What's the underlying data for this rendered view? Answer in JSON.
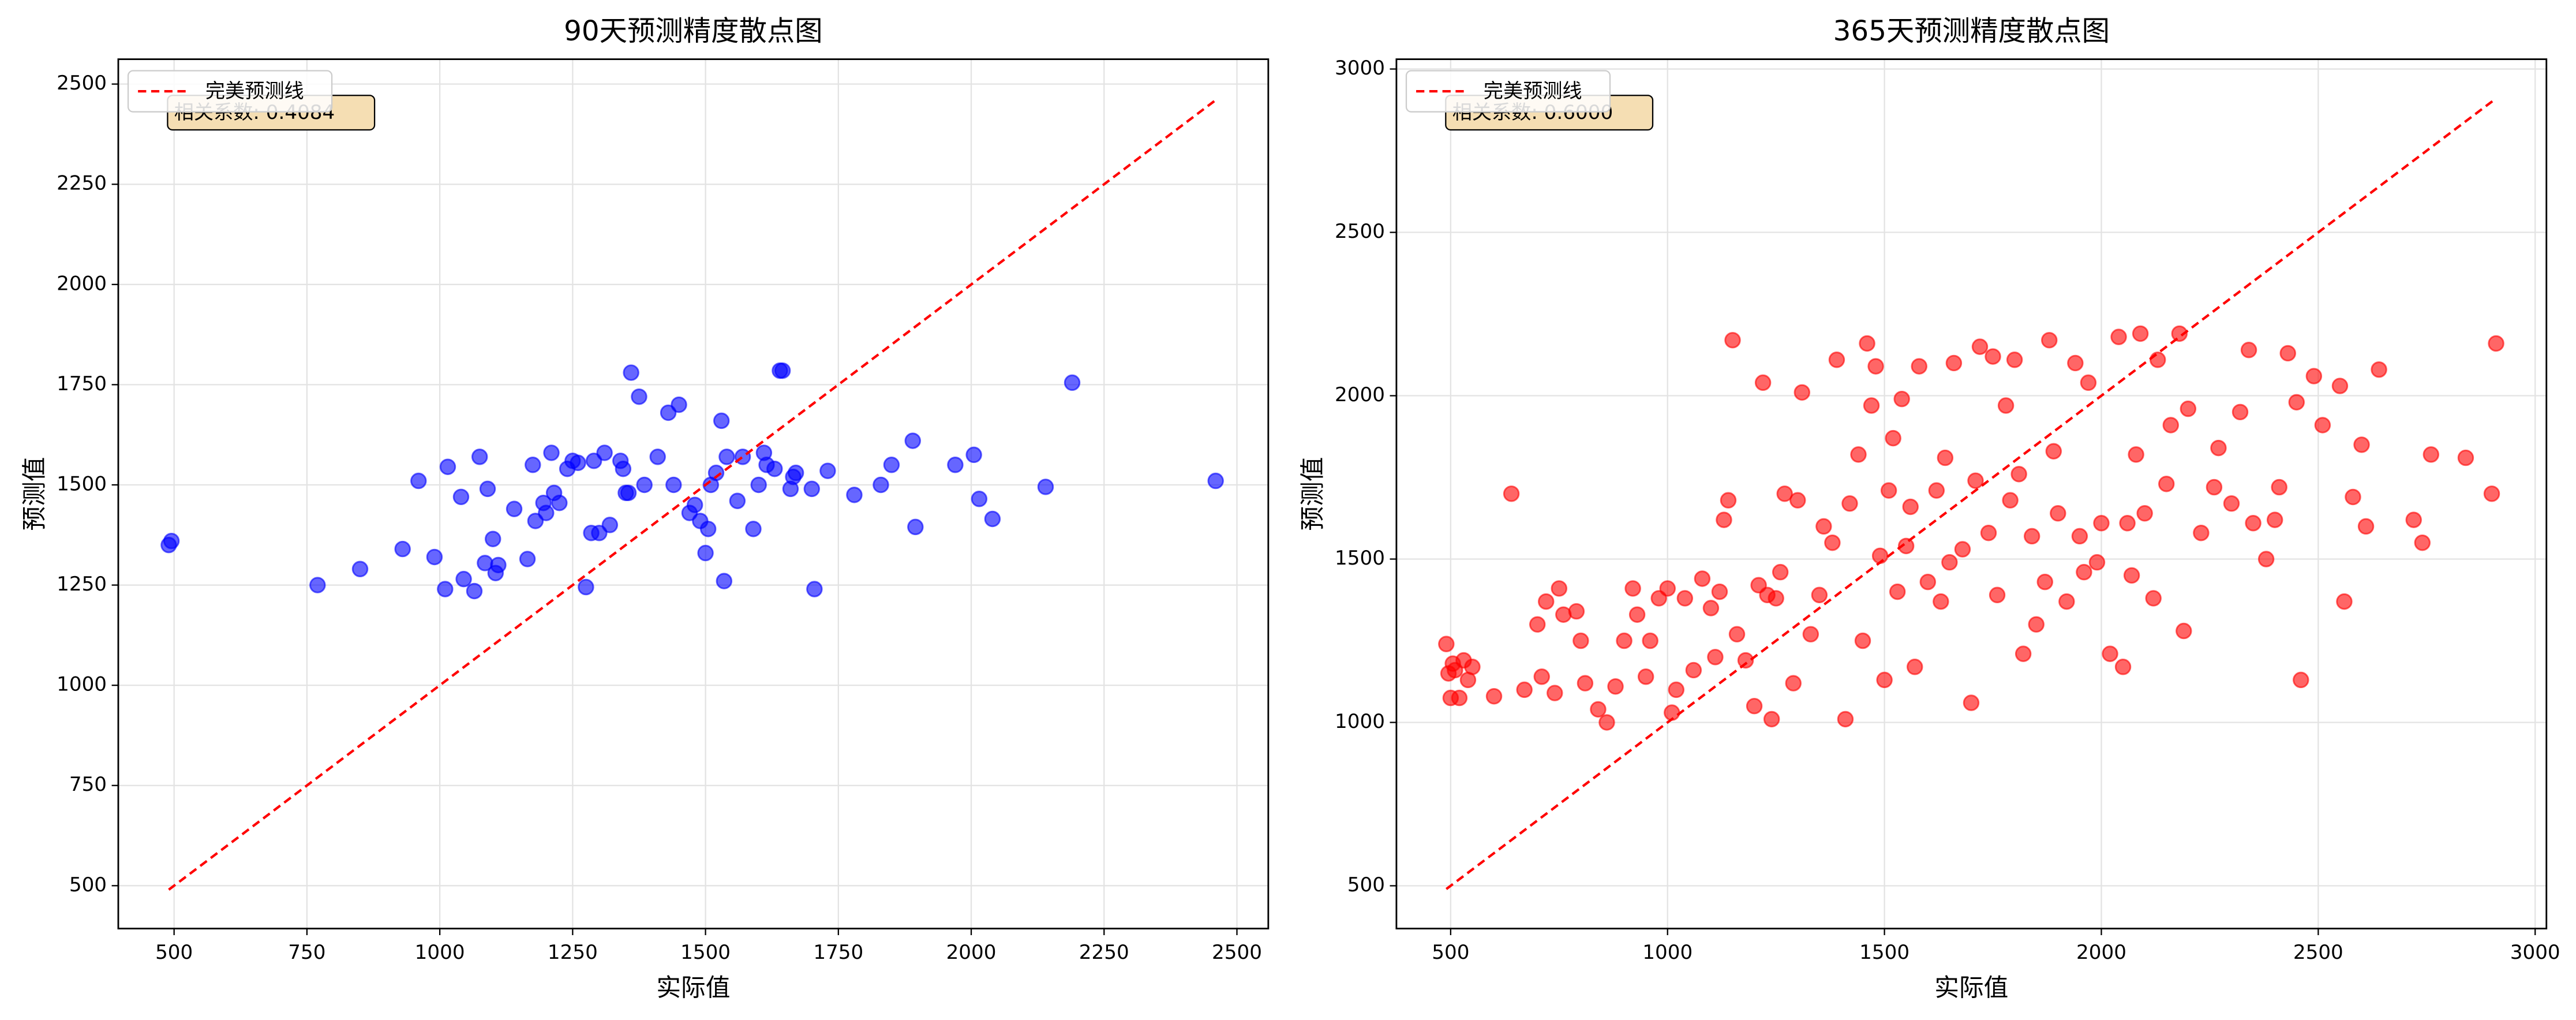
{
  "chart_data": [
    {
      "type": "scatter",
      "title": "90天预测精度散点图",
      "xlabel": "实际值",
      "ylabel": "预测值",
      "annotation": "相关系数: 0.4084",
      "color": "#0000ff",
      "grid": true,
      "legend": "upper left",
      "xlim": [
        395,
        2559
      ],
      "ylim": [
        393,
        2562
      ],
      "xticks": [
        500,
        750,
        1000,
        1250,
        1500,
        1750,
        2000,
        2250,
        2500
      ],
      "yticks": [
        500,
        750,
        1000,
        1250,
        1500,
        1750,
        2000,
        2250,
        2500
      ],
      "reference_line": {
        "name": "完美预测线",
        "color": "#ff0000",
        "x": [
          490,
          2460
        ],
        "values": [
          490,
          2460
        ]
      },
      "x": [
        490,
        495,
        770,
        850,
        930,
        960,
        990,
        1010,
        1015,
        1040,
        1045,
        1065,
        1075,
        1085,
        1090,
        1100,
        1105,
        1110,
        1140,
        1165,
        1175,
        1180,
        1195,
        1200,
        1210,
        1215,
        1225,
        1240,
        1250,
        1260,
        1275,
        1285,
        1290,
        1300,
        1310,
        1320,
        1340,
        1345,
        1350,
        1355,
        1360,
        1375,
        1385,
        1410,
        1430,
        1440,
        1450,
        1470,
        1480,
        1490,
        1500,
        1505,
        1510,
        1520,
        1530,
        1535,
        1540,
        1560,
        1570,
        1590,
        1600,
        1610,
        1615,
        1630,
        1640,
        1645,
        1660,
        1665,
        1670,
        1700,
        1705,
        1730,
        1780,
        1830,
        1850,
        1890,
        1895,
        1970,
        2005,
        2015,
        2040,
        2140,
        2190,
        2460
      ],
      "values": [
        1350,
        1360,
        1250,
        1290,
        1340,
        1510,
        1320,
        1240,
        1545,
        1470,
        1265,
        1235,
        1570,
        1305,
        1490,
        1365,
        1280,
        1300,
        1440,
        1315,
        1550,
        1410,
        1455,
        1430,
        1580,
        1480,
        1455,
        1540,
        1560,
        1555,
        1245,
        1380,
        1560,
        1380,
        1580,
        1400,
        1560,
        1540,
        1480,
        1480,
        1780,
        1720,
        1500,
        1570,
        1680,
        1500,
        1700,
        1430,
        1450,
        1410,
        1330,
        1390,
        1500,
        1530,
        1660,
        1260,
        1570,
        1460,
        1570,
        1390,
        1500,
        1580,
        1550,
        1540,
        1785,
        1785,
        1490,
        1520,
        1530,
        1490,
        1240,
        1535,
        1475,
        1500,
        1550,
        1610,
        1395,
        1550,
        1575,
        1465,
        1415,
        1495,
        1755,
        1510
      ]
    },
    {
      "type": "scatter",
      "title": "365天预测精度散点图",
      "xlabel": "实际值",
      "ylabel": "预测值",
      "annotation": "相关系数: 0.6000",
      "color": "#ff0000",
      "grid": true,
      "legend": "upper left",
      "xlim": [
        375,
        3026
      ],
      "ylim": [
        369,
        3030
      ],
      "xticks": [
        500,
        1000,
        1500,
        2000,
        2500,
        3000
      ],
      "yticks": [
        500,
        1000,
        1500,
        2000,
        2500,
        3000
      ],
      "reference_line": {
        "name": "完美预测线",
        "color": "#ff0000",
        "x": [
          490,
          2910
        ],
        "values": [
          490,
          2910
        ]
      },
      "x": [
        490,
        495,
        500,
        505,
        510,
        520,
        530,
        540,
        550,
        600,
        640,
        670,
        700,
        710,
        720,
        740,
        750,
        760,
        790,
        800,
        810,
        840,
        860,
        880,
        900,
        920,
        930,
        950,
        960,
        980,
        1000,
        1010,
        1020,
        1040,
        1060,
        1080,
        1100,
        1110,
        1120,
        1130,
        1140,
        1150,
        1160,
        1180,
        1200,
        1210,
        1220,
        1230,
        1240,
        1250,
        1260,
        1270,
        1290,
        1300,
        1310,
        1330,
        1350,
        1360,
        1380,
        1390,
        1410,
        1420,
        1440,
        1450,
        1460,
        1470,
        1480,
        1490,
        1500,
        1510,
        1520,
        1530,
        1540,
        1550,
        1560,
        1570,
        1580,
        1600,
        1620,
        1630,
        1640,
        1650,
        1660,
        1680,
        1700,
        1710,
        1720,
        1740,
        1750,
        1760,
        1780,
        1790,
        1800,
        1810,
        1820,
        1840,
        1850,
        1870,
        1880,
        1890,
        1900,
        1920,
        1940,
        1950,
        1960,
        1970,
        1990,
        2000,
        2020,
        2040,
        2050,
        2060,
        2070,
        2080,
        2090,
        2100,
        2120,
        2130,
        2150,
        2160,
        2180,
        2190,
        2200,
        2230,
        2260,
        2270,
        2300,
        2320,
        2340,
        2350,
        2380,
        2400,
        2410,
        2430,
        2450,
        2460,
        2490,
        2510,
        2550,
        2560,
        2580,
        2600,
        2610,
        2640,
        2720,
        2740,
        2760,
        2840,
        2900,
        2910
      ],
      "values": [
        1240,
        1150,
        1075,
        1180,
        1160,
        1075,
        1190,
        1130,
        1170,
        1080,
        1700,
        1100,
        1300,
        1140,
        1370,
        1090,
        1410,
        1330,
        1340,
        1250,
        1120,
        1040,
        1000,
        1110,
        1250,
        1410,
        1330,
        1140,
        1250,
        1380,
        1410,
        1030,
        1100,
        1380,
        1160,
        1440,
        1350,
        1200,
        1400,
        1620,
        1680,
        2170,
        1270,
        1190,
        1050,
        1420,
        2040,
        1390,
        1010,
        1380,
        1460,
        1700,
        1120,
        1680,
        2010,
        1270,
        1390,
        1600,
        1550,
        2110,
        1010,
        1670,
        1820,
        1250,
        2160,
        1970,
        2090,
        1510,
        1130,
        1710,
        1870,
        1400,
        1990,
        1540,
        1660,
        1170,
        2090,
        1430,
        1710,
        1370,
        1810,
        1490,
        2100,
        1530,
        1060,
        1740,
        2150,
        1580,
        2120,
        1390,
        1970,
        1680,
        2110,
        1760,
        1210,
        1570,
        1300,
        1430,
        2170,
        1830,
        1640,
        1370,
        2100,
        1570,
        1460,
        2040,
        1490,
        1610,
        1210,
        2180,
        1170,
        1610,
        1450,
        1820,
        2190,
        1640,
        1380,
        2110,
        1730,
        1910,
        2190,
        1280,
        1960,
        1580,
        1720,
        1840,
        1670,
        1950,
        2140,
        1610,
        1500,
        1620,
        1720,
        2130,
        1980,
        1130,
        2060,
        1910,
        2030,
        1370,
        1690,
        1850,
        1600,
        2080,
        1620,
        1550,
        1820,
        1810,
        1700,
        2160
      ]
    }
  ]
}
